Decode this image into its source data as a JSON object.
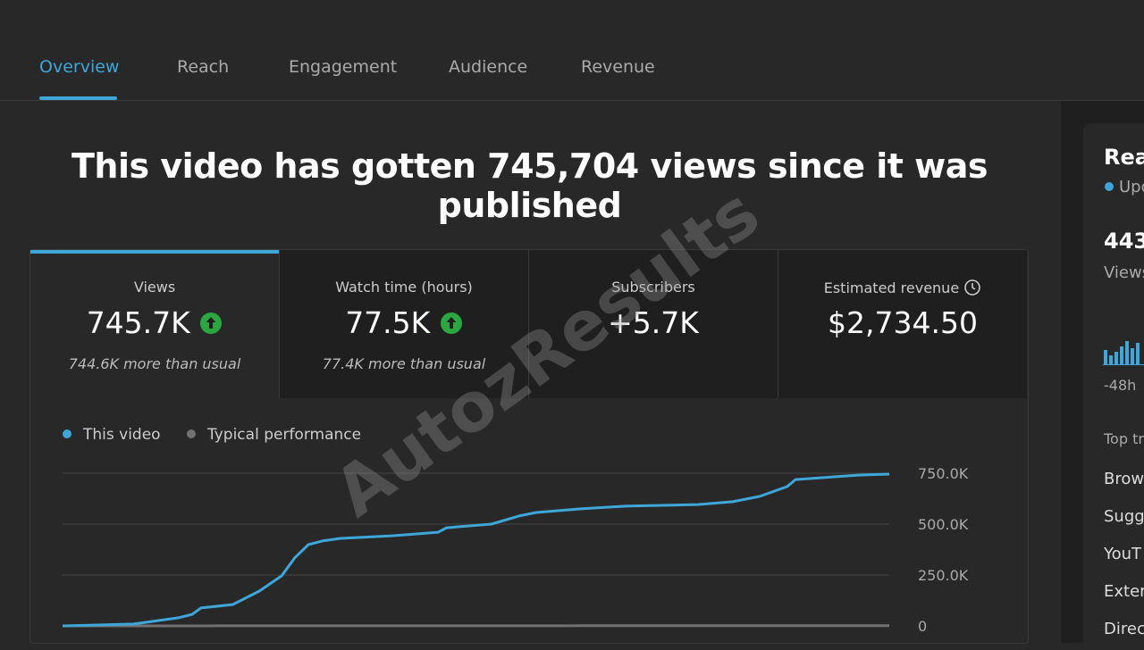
{
  "tabs": [
    "Overview",
    "Reach",
    "Engagement",
    "Audience",
    "Revenue"
  ],
  "headline": "This video has gotten 745,704 views since it was published",
  "watermark": "AutozResults",
  "metric_cards": [
    {
      "label": "Views",
      "value": "745.7K",
      "note": "744.6K more than usual"
    },
    {
      "label": "Watch time (hours)",
      "value": "77.5K",
      "note": "77.4K more than usual"
    },
    {
      "label": "Subscribers",
      "value": "+5.7K"
    },
    {
      "label": "Estimated revenue",
      "value": "$2,734.50"
    }
  ],
  "side_panel": {
    "title": "Rea",
    "status": "Upd",
    "value": "443",
    "value_label": "Views",
    "axis_label": "-48h",
    "section": "Top tr",
    "sources": [
      "Brow",
      "Sugg",
      "YouT",
      "Exter",
      "Direc"
    ]
  },
  "chart_data": {
    "type": "line",
    "x": [
      0,
      67,
      109,
      122,
      130,
      160,
      185,
      206,
      218,
      231,
      244,
      261,
      311,
      353,
      361,
      403,
      429,
      445,
      487,
      529,
      597,
      630,
      655,
      681,
      689,
      714,
      748,
      777
    ],
    "series": [
      {
        "name": "This video",
        "color": "#3ea6d8",
        "values": [
          0,
          9000,
          40000,
          57000,
          88000,
          105000,
          171000,
          246000,
          333000,
          399000,
          417000,
          430000,
          443000,
          460000,
          482000,
          500000,
          540000,
          557000,
          575000,
          588000,
          596000,
          610000,
          636000,
          684000,
          719000,
          728000,
          741000,
          745704
        ]
      },
      {
        "name": "Typical performance",
        "color": "#717171",
        "values": [
          0,
          100,
          160,
          180,
          190,
          230,
          270,
          300,
          320,
          340,
          360,
          380,
          450,
          510,
          520,
          580,
          620,
          640,
          700,
          760,
          860,
          900,
          940,
          980,
          990,
          1020,
          1070,
          1100
        ]
      }
    ],
    "xlim": [
      0,
      777
    ],
    "ylim": [
      0,
      750000
    ],
    "yticks": [
      {
        "value": 0,
        "label": "0"
      },
      {
        "value": 250000,
        "label": "250.0K"
      },
      {
        "value": 500000,
        "label": "500.0K"
      },
      {
        "value": 750000,
        "label": "750.0K"
      }
    ],
    "grid": true
  }
}
